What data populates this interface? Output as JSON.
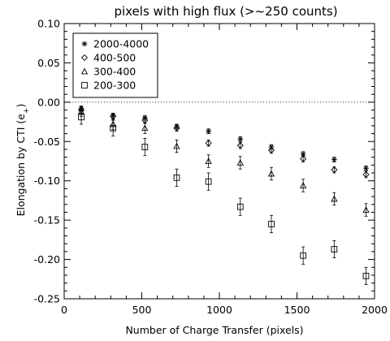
{
  "chart_data": {
    "type": "scatter",
    "title": "pixels with high flux (>~250 counts)",
    "xlabel": "Number of Charge Transfer (pixels)",
    "ylabel": "Elongation by CTI (e+)",
    "xlim": [
      0,
      2000
    ],
    "ylim": [
      -0.25,
      0.1
    ],
    "xticks": [
      0,
      500,
      1000,
      1500,
      2000
    ],
    "yticks": [
      -0.25,
      -0.2,
      -0.15,
      -0.1,
      -0.05,
      0.0,
      0.05,
      0.1
    ],
    "ytick_labels": [
      "-0.25",
      "-0.20",
      "-0.15",
      "-0.10",
      "-0.05",
      "0.00",
      "0.05",
      "0.10"
    ],
    "reference_line_y": 0.0,
    "legend_position": "top-left",
    "grid": false,
    "series": [
      {
        "name": "2000-4000",
        "marker": "asterisk",
        "x": [
          110,
          315,
          520,
          725,
          930,
          1135,
          1335,
          1540,
          1740,
          1945
        ],
        "y": [
          -0.008,
          -0.017,
          -0.02,
          -0.031,
          -0.037,
          -0.047,
          -0.057,
          -0.066,
          -0.073,
          -0.084
        ],
        "err": [
          0.003,
          0.003,
          0.003,
          0.003,
          0.003,
          0.003,
          0.003,
          0.003,
          0.003,
          0.003
        ]
      },
      {
        "name": "400-500",
        "marker": "diamond",
        "x": [
          110,
          315,
          520,
          725,
          930,
          1135,
          1335,
          1540,
          1740,
          1945
        ],
        "y": [
          -0.01,
          -0.018,
          -0.023,
          -0.033,
          -0.052,
          -0.055,
          -0.061,
          -0.072,
          -0.086,
          -0.092
        ],
        "err": [
          0.004,
          0.004,
          0.004,
          0.004,
          0.004,
          0.004,
          0.004,
          0.004,
          0.004,
          0.004
        ]
      },
      {
        "name": "300-400",
        "marker": "triangle",
        "x": [
          110,
          315,
          520,
          725,
          930,
          1135,
          1335,
          1540,
          1740,
          1945
        ],
        "y": [
          -0.012,
          -0.028,
          -0.033,
          -0.056,
          -0.075,
          -0.077,
          -0.091,
          -0.106,
          -0.123,
          -0.137
        ],
        "err": [
          0.006,
          0.007,
          0.007,
          0.008,
          0.008,
          0.008,
          0.008,
          0.008,
          0.008,
          0.008
        ]
      },
      {
        "name": "200-300",
        "marker": "square",
        "x": [
          110,
          315,
          520,
          725,
          930,
          1135,
          1335,
          1540,
          1740,
          1945
        ],
        "y": [
          -0.019,
          -0.033,
          -0.057,
          -0.096,
          -0.101,
          -0.133,
          -0.155,
          -0.195,
          -0.187,
          -0.221
        ],
        "err": [
          0.009,
          0.01,
          0.011,
          0.011,
          0.011,
          0.011,
          0.011,
          0.011,
          0.011,
          0.011
        ]
      }
    ]
  }
}
